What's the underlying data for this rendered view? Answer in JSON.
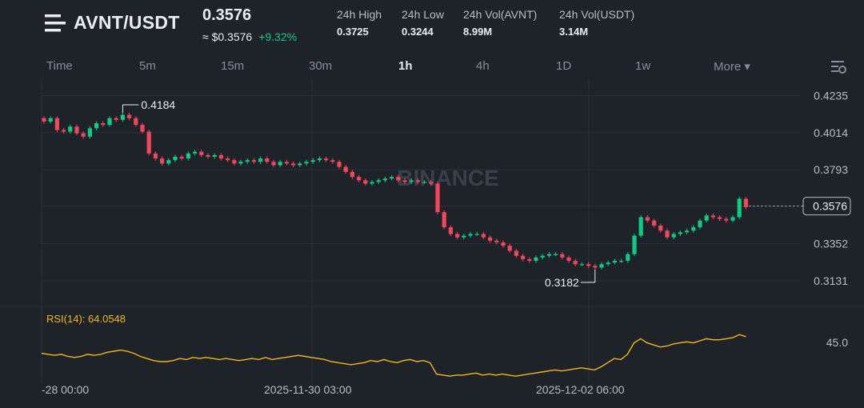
{
  "header": {
    "pair": "AVNT/USDT",
    "price": "0.3576",
    "usd_price": "≈ $0.3576",
    "change": "+9.32%",
    "stats": [
      {
        "label": "24h High",
        "value": "0.3725"
      },
      {
        "label": "24h Low",
        "value": "0.3244"
      },
      {
        "label": "24h Vol(AVNT)",
        "value": "8.99M"
      },
      {
        "label": "24h Vol(USDT)",
        "value": "3.14M"
      }
    ]
  },
  "tabs": [
    {
      "label": "Time"
    },
    {
      "label": "5m"
    },
    {
      "label": "15m"
    },
    {
      "label": "30m"
    },
    {
      "label": "1h",
      "active": true
    },
    {
      "label": "4h"
    },
    {
      "label": "1D"
    },
    {
      "label": "1w"
    },
    {
      "label": "More ▾"
    }
  ],
  "watermark": "BINANCE",
  "chart_data": {
    "type": "candlestick",
    "y_ticks": [
      "0.4235",
      "0.4014",
      "0.3793",
      "0.3352",
      "0.3131"
    ],
    "ylim": [
      0.305,
      0.428
    ],
    "x_ticks": [
      "-28 00:00",
      "2025-11-30 03:00",
      "2025-12-02 06:00"
    ],
    "high_annotation": "0.4184",
    "low_annotation": "0.3182",
    "last_price_label": "0.3576",
    "grid": true,
    "colors": {
      "up": "#0ecb81",
      "down": "#f6465d",
      "rsi": "#f0b90b",
      "grid": "#2b3139"
    },
    "closes": [
      0.408,
      0.41,
      0.403,
      0.402,
      0.405,
      0.401,
      0.399,
      0.404,
      0.407,
      0.406,
      0.41,
      0.409,
      0.412,
      0.41,
      0.406,
      0.402,
      0.389,
      0.386,
      0.383,
      0.385,
      0.387,
      0.386,
      0.389,
      0.39,
      0.388,
      0.387,
      0.388,
      0.386,
      0.385,
      0.383,
      0.384,
      0.385,
      0.384,
      0.386,
      0.384,
      0.382,
      0.384,
      0.383,
      0.382,
      0.383,
      0.384,
      0.385,
      0.386,
      0.385,
      0.384,
      0.381,
      0.378,
      0.375,
      0.373,
      0.371,
      0.372,
      0.373,
      0.374,
      0.375,
      0.373,
      0.372,
      0.373,
      0.372,
      0.372,
      0.371,
      0.354,
      0.345,
      0.341,
      0.339,
      0.34,
      0.341,
      0.341,
      0.339,
      0.337,
      0.336,
      0.334,
      0.331,
      0.328,
      0.326,
      0.325,
      0.327,
      0.328,
      0.329,
      0.329,
      0.327,
      0.325,
      0.323,
      0.323,
      0.322,
      0.321,
      0.323,
      0.324,
      0.325,
      0.325,
      0.329,
      0.34,
      0.351,
      0.349,
      0.346,
      0.343,
      0.339,
      0.341,
      0.342,
      0.343,
      0.345,
      0.349,
      0.352,
      0.351,
      0.35,
      0.349,
      0.351,
      0.362,
      0.357
    ],
    "last_close": 0.3576,
    "rsi": {
      "label": "RSI(14): 64.0548",
      "y_tick": "45.0",
      "values": [
        48,
        47,
        46,
        47,
        45,
        44,
        45,
        47,
        46,
        47,
        49,
        50,
        51,
        50,
        48,
        45,
        43,
        41,
        40,
        40,
        41,
        43,
        42,
        44,
        43,
        44,
        43,
        42,
        43,
        42,
        41,
        42,
        43,
        42,
        44,
        42,
        43,
        44,
        45,
        46,
        45,
        44,
        43,
        42,
        40,
        39,
        38,
        37,
        38,
        39,
        41,
        40,
        42,
        40,
        39,
        41,
        42,
        40,
        41,
        39,
        28,
        27,
        26,
        27,
        27,
        28,
        29,
        27,
        28,
        27,
        28,
        27,
        26,
        27,
        28,
        29,
        30,
        31,
        32,
        31,
        32,
        33,
        34,
        33,
        32,
        35,
        39,
        43,
        42,
        47,
        58,
        62,
        58,
        56,
        54,
        55,
        57,
        58,
        59,
        58,
        60,
        62,
        61,
        61,
        62,
        63,
        66,
        64
      ]
    }
  }
}
